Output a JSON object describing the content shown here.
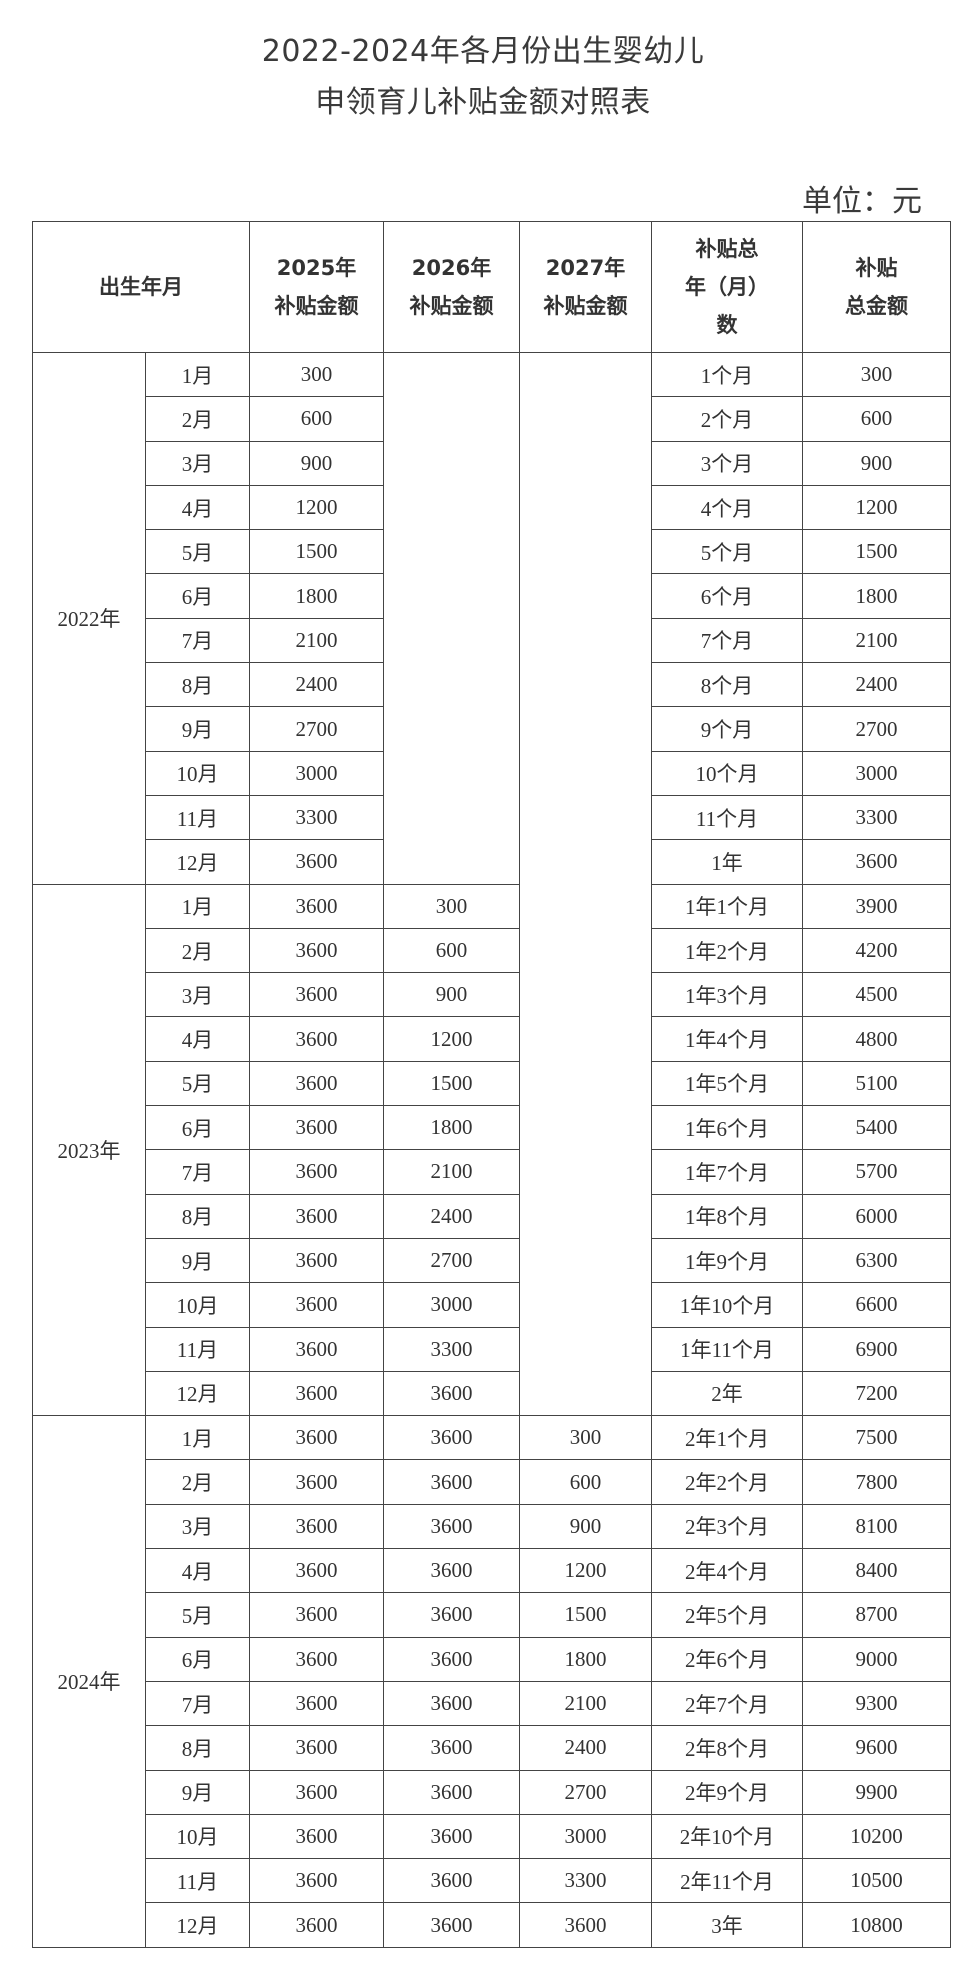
{
  "title_line1": "2022-2024年各月份出生婴幼儿",
  "title_line2": "申领育儿补贴金额对照表",
  "unit": "单位：元",
  "headers": {
    "birth": "出生年月",
    "y2025": [
      "2025年",
      "补贴金额"
    ],
    "y2026": [
      "2026年",
      "补贴金额"
    ],
    "y2027": [
      "2027年",
      "补贴金额"
    ],
    "duration": [
      "补贴总",
      "年（月）",
      "数"
    ],
    "total": [
      "补贴",
      "总金额"
    ]
  },
  "groups": [
    {
      "year": "2022年",
      "rows": [
        [
          "1月",
          "300",
          "",
          "",
          "1个月",
          "300"
        ],
        [
          "2月",
          "600",
          "",
          "",
          "2个月",
          "600"
        ],
        [
          "3月",
          "900",
          "",
          "",
          "3个月",
          "900"
        ],
        [
          "4月",
          "1200",
          "",
          "",
          "4个月",
          "1200"
        ],
        [
          "5月",
          "1500",
          "",
          "",
          "5个月",
          "1500"
        ],
        [
          "6月",
          "1800",
          "",
          "",
          "6个月",
          "1800"
        ],
        [
          "7月",
          "2100",
          "",
          "",
          "7个月",
          "2100"
        ],
        [
          "8月",
          "2400",
          "",
          "",
          "8个月",
          "2400"
        ],
        [
          "9月",
          "2700",
          "",
          "",
          "9个月",
          "2700"
        ],
        [
          "10月",
          "3000",
          "",
          "",
          "10个月",
          "3000"
        ],
        [
          "11月",
          "3300",
          "",
          "",
          "11个月",
          "3300"
        ],
        [
          "12月",
          "3600",
          "",
          "",
          "1年",
          "3600"
        ]
      ]
    },
    {
      "year": "2023年",
      "rows": [
        [
          "1月",
          "3600",
          "300",
          "",
          "1年1个月",
          "3900"
        ],
        [
          "2月",
          "3600",
          "600",
          "",
          "1年2个月",
          "4200"
        ],
        [
          "3月",
          "3600",
          "900",
          "",
          "1年3个月",
          "4500"
        ],
        [
          "4月",
          "3600",
          "1200",
          "",
          "1年4个月",
          "4800"
        ],
        [
          "5月",
          "3600",
          "1500",
          "",
          "1年5个月",
          "5100"
        ],
        [
          "6月",
          "3600",
          "1800",
          "",
          "1年6个月",
          "5400"
        ],
        [
          "7月",
          "3600",
          "2100",
          "",
          "1年7个月",
          "5700"
        ],
        [
          "8月",
          "3600",
          "2400",
          "",
          "1年8个月",
          "6000"
        ],
        [
          "9月",
          "3600",
          "2700",
          "",
          "1年9个月",
          "6300"
        ],
        [
          "10月",
          "3600",
          "3000",
          "",
          "1年10个月",
          "6600"
        ],
        [
          "11月",
          "3600",
          "3300",
          "",
          "1年11个月",
          "6900"
        ],
        [
          "12月",
          "3600",
          "3600",
          "",
          "2年",
          "7200"
        ]
      ]
    },
    {
      "year": "2024年",
      "rows": [
        [
          "1月",
          "3600",
          "3600",
          "300",
          "2年1个月",
          "7500"
        ],
        [
          "2月",
          "3600",
          "3600",
          "600",
          "2年2个月",
          "7800"
        ],
        [
          "3月",
          "3600",
          "3600",
          "900",
          "2年3个月",
          "8100"
        ],
        [
          "4月",
          "3600",
          "3600",
          "1200",
          "2年4个月",
          "8400"
        ],
        [
          "5月",
          "3600",
          "3600",
          "1500",
          "2年5个月",
          "8700"
        ],
        [
          "6月",
          "3600",
          "3600",
          "1800",
          "2年6个月",
          "9000"
        ],
        [
          "7月",
          "3600",
          "3600",
          "2100",
          "2年7个月",
          "9300"
        ],
        [
          "8月",
          "3600",
          "3600",
          "2400",
          "2年8个月",
          "9600"
        ],
        [
          "9月",
          "3600",
          "3600",
          "2700",
          "2年9个月",
          "9900"
        ],
        [
          "10月",
          "3600",
          "3600",
          "3000",
          "2年10个月",
          "10200"
        ],
        [
          "11月",
          "3600",
          "3600",
          "3300",
          "2年11个月",
          "10500"
        ],
        [
          "12月",
          "3600",
          "3600",
          "3600",
          "3年",
          "10800"
        ]
      ]
    }
  ]
}
